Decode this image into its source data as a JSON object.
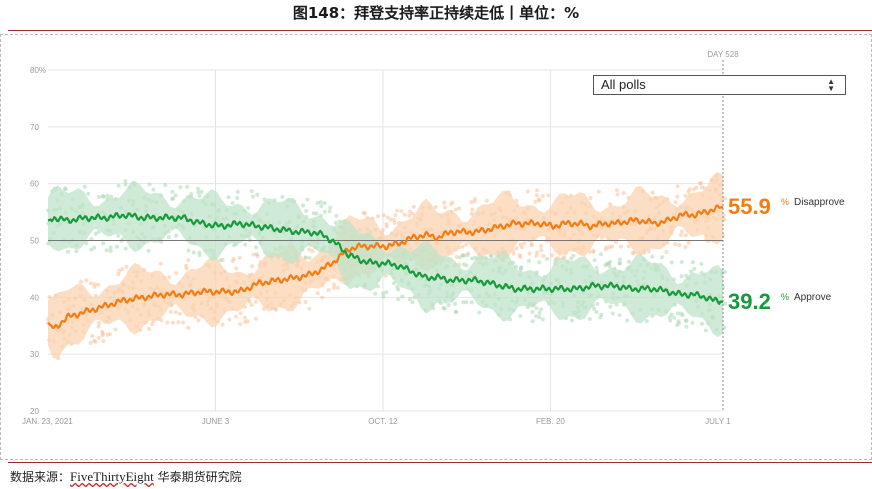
{
  "figure": {
    "title": "图148：拜登支持率正持续走低丨单位：%",
    "source_prefix": "数据来源：",
    "source_brand": "FiveThirtyEight",
    "source_suffix": " 华泰期货研究院"
  },
  "controls": {
    "poll_filter": "All polls"
  },
  "chart_data": {
    "type": "line",
    "title": "",
    "xlabel": "",
    "ylabel": "",
    "ylim": [
      20,
      80
    ],
    "yticks": [
      "80%",
      "70",
      "60",
      "50",
      "40",
      "30",
      "20"
    ],
    "ytick_values": [
      80,
      70,
      60,
      50,
      40,
      30,
      20
    ],
    "x_start": "JAN. 23, 2021",
    "x_end": "JULY 1",
    "x_day_max": 528,
    "xticks": [
      {
        "label": "JAN. 23, 2021",
        "day": 0
      },
      {
        "label": "JUNE 3",
        "day": 131
      },
      {
        "label": "OCT. 12",
        "day": 262
      },
      {
        "label": "FEB. 20",
        "day": 393
      },
      {
        "label": "JULY 1",
        "day": 524
      }
    ],
    "reference_line": 50,
    "marker_label": "DAY 528",
    "grid": true,
    "series": [
      {
        "name": "Disapprove",
        "color": "#f57c12",
        "band_color": "#fbd3b0",
        "dot_color": "#f9c198",
        "final_value": "55.9",
        "x": [
          0,
          5,
          15,
          30,
          45,
          60,
          75,
          90,
          105,
          120,
          135,
          150,
          165,
          180,
          195,
          205,
          215,
          225,
          235,
          245,
          255,
          265,
          275,
          285,
          295,
          305,
          315,
          325,
          335,
          345,
          355,
          365,
          375,
          385,
          395,
          405,
          415,
          425,
          435,
          445,
          455,
          465,
          475,
          485,
          495,
          505,
          515,
          520,
          528
        ],
        "values": [
          35.5,
          34.5,
          36.5,
          37.5,
          38.5,
          39.5,
          40,
          40.5,
          40.5,
          41,
          41,
          41,
          42.5,
          43,
          43.5,
          44,
          45,
          46.5,
          48.5,
          49,
          49,
          49,
          49.5,
          50.5,
          51,
          50.5,
          51.5,
          51.5,
          51.5,
          52,
          52.5,
          53,
          53,
          53,
          52.5,
          53,
          53,
          52.5,
          53,
          53,
          53.5,
          53.5,
          53,
          53.5,
          54.5,
          54.5,
          55,
          55.5,
          55.9
        ]
      },
      {
        "name": "Approve",
        "color": "#179a3b",
        "band_color": "#bfe3c8",
        "dot_color": "#a9d8b5",
        "final_value": "39.2",
        "x": [
          0,
          5,
          15,
          30,
          45,
          60,
          75,
          90,
          105,
          120,
          135,
          150,
          165,
          180,
          195,
          205,
          215,
          225,
          235,
          245,
          255,
          265,
          275,
          285,
          295,
          305,
          315,
          325,
          335,
          345,
          355,
          365,
          375,
          385,
          395,
          405,
          415,
          425,
          435,
          445,
          455,
          465,
          475,
          485,
          495,
          505,
          515,
          520,
          528
        ],
        "values": [
          53.5,
          54,
          53.5,
          54,
          54,
          54.5,
          54,
          54,
          54,
          53,
          52.5,
          53,
          52.5,
          52,
          51.5,
          51.5,
          51,
          49.5,
          47.5,
          46.5,
          46,
          46,
          45.5,
          44.5,
          43.5,
          43.5,
          43,
          43,
          43,
          42.5,
          42,
          41.5,
          41.5,
          41.5,
          41.5,
          41.5,
          41.5,
          42,
          42,
          42,
          41.5,
          41.5,
          41.5,
          41,
          40.5,
          40.5,
          40,
          39.5,
          39.2
        ]
      }
    ]
  }
}
